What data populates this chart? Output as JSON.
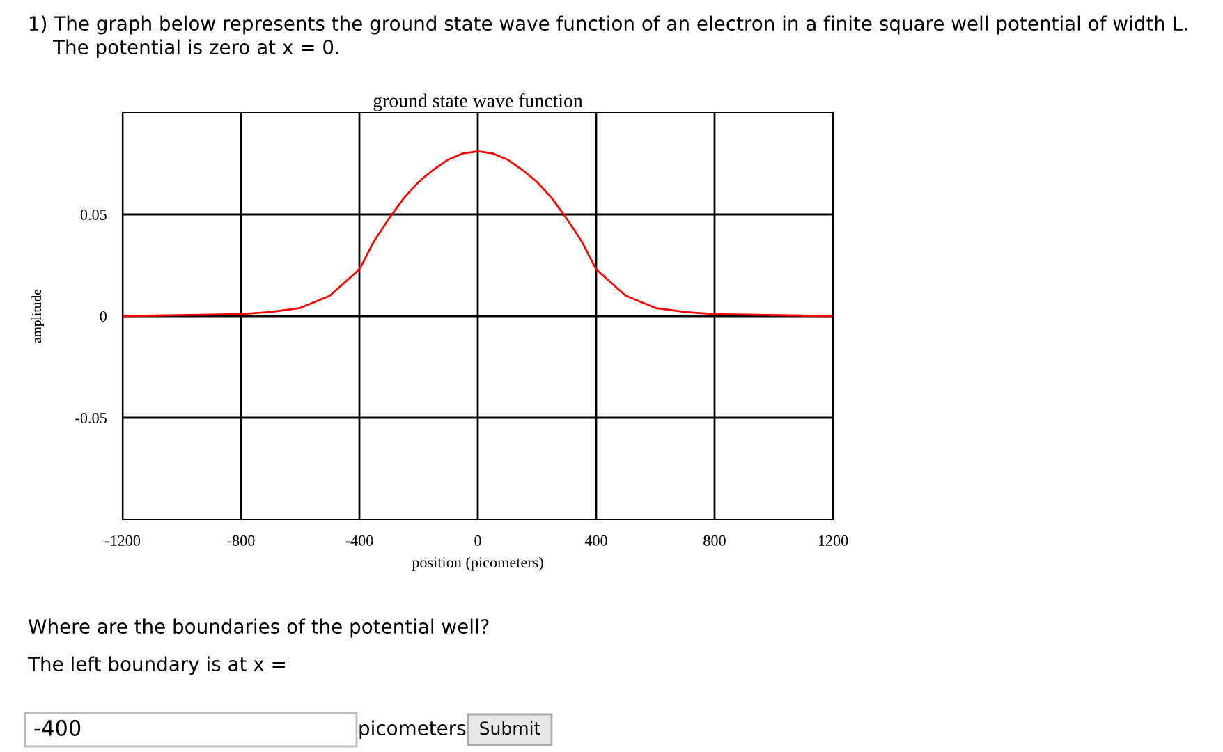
{
  "chart_data": {
    "type": "line",
    "title": "ground state wave function",
    "xlabel": "position (picometers)",
    "ylabel": "amplitude",
    "x": [
      -1200,
      -800,
      -700,
      -600,
      -500,
      -400,
      -350,
      -300,
      -250,
      -200,
      -150,
      -100,
      -50,
      0,
      50,
      100,
      150,
      200,
      250,
      300,
      350,
      400,
      500,
      600,
      700,
      800,
      1200
    ],
    "series": [
      {
        "color": "#ff0000",
        "values": [
          0,
          0.001,
          0.002,
          0.004,
          0.01,
          0.023,
          0.037,
          0.048,
          0.058,
          0.066,
          0.072,
          0.077,
          0.08,
          0.081,
          0.08,
          0.077,
          0.072,
          0.066,
          0.058,
          0.048,
          0.037,
          0.023,
          0.01,
          0.004,
          0.002,
          0.001,
          0
        ]
      }
    ],
    "xlim": [
      -1200,
      1200
    ],
    "ylim": [
      -0.1,
      0.1
    ],
    "xticks": [
      -1200,
      -800,
      -400,
      0,
      400,
      800,
      1200
    ],
    "yticks": [
      -0.05,
      0,
      0.05
    ],
    "grid": true,
    "line_style": "solid",
    "annotations": [
      "1) The graph below represents the ground state wave function of an electron in a finite square well potential of width L.",
      "The potential is zero at x = 0.",
      "Where are the boundaries of the potential well?",
      "The left boundary is at x =",
      "-400",
      "picometers",
      "Submit"
    ]
  }
}
